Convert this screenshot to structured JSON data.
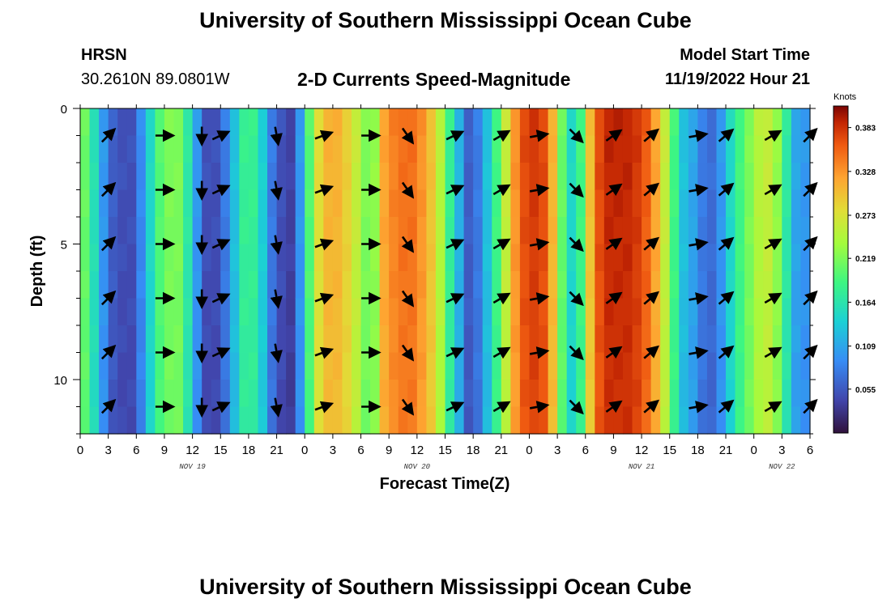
{
  "header": {
    "title": "University of Southern Mississippi Ocean Cube",
    "station": "HRSN",
    "coords": "30.2610N  89.0801W",
    "plot_title": "2-D Currents Speed-Magnitude",
    "model_label": "Model Start Time",
    "model_time": "11/19/2022 Hour 21",
    "footer_title": "University of Southern Mississippi Ocean Cube"
  },
  "chart_data": {
    "type": "heatmap",
    "title": "2-D Currents Speed-Magnitude",
    "xlabel": "Forecast Time(Z)",
    "ylabel": "Depth (ft)",
    "x_tick_labels": [
      "0",
      "3",
      "6",
      "9",
      "12",
      "15",
      "18",
      "21",
      "0",
      "3",
      "6",
      "9",
      "12",
      "15",
      "18",
      "21",
      "0",
      "3",
      "6",
      "9",
      "12",
      "15",
      "18",
      "21",
      "0",
      "3",
      "6"
    ],
    "x_tick_hours": [
      0,
      3,
      6,
      9,
      12,
      15,
      18,
      21,
      24,
      27,
      30,
      33,
      36,
      39,
      42,
      45,
      48,
      51,
      54,
      57,
      60,
      63,
      66,
      69,
      72,
      75,
      78
    ],
    "date_labels": [
      {
        "label": "NOV 19",
        "hour": 12
      },
      {
        "label": "NOV 20",
        "hour": 36
      },
      {
        "label": "NOV 21",
        "hour": 60
      },
      {
        "label": "NOV 22",
        "hour": 75
      }
    ],
    "xlim": [
      0,
      78
    ],
    "y_tick_labels": [
      "0",
      "5",
      "10"
    ],
    "y_tick_values": [
      0,
      5,
      10
    ],
    "ylim": [
      0,
      12
    ],
    "colorbar": {
      "label": "Knots",
      "ticks": [
        "0.383",
        "0.328",
        "0.273",
        "0.219",
        "0.164",
        "0.109",
        "0.055"
      ],
      "tick_values": [
        0.383,
        0.328,
        0.273,
        0.219,
        0.164,
        0.109,
        0.055
      ],
      "range": [
        0.0,
        0.41
      ]
    },
    "speed_by_hour": [
      0.21,
      0.16,
      0.1,
      0.06,
      0.05,
      0.05,
      0.09,
      0.15,
      0.2,
      0.22,
      0.22,
      0.17,
      0.1,
      0.05,
      0.05,
      0.08,
      0.13,
      0.18,
      0.18,
      0.14,
      0.08,
      0.05,
      0.04,
      0.1,
      0.2,
      0.28,
      0.31,
      0.31,
      0.29,
      0.26,
      0.22,
      0.23,
      0.32,
      0.34,
      0.35,
      0.35,
      0.33,
      0.3,
      0.25,
      0.18,
      0.12,
      0.06,
      0.08,
      0.13,
      0.19,
      0.26,
      0.33,
      0.37,
      0.38,
      0.37,
      0.31,
      0.21,
      0.15,
      0.19,
      0.3,
      0.37,
      0.39,
      0.39,
      0.39,
      0.38,
      0.36,
      0.32,
      0.26,
      0.19,
      0.13,
      0.11,
      0.08,
      0.07,
      0.1,
      0.15,
      0.19,
      0.22,
      0.25,
      0.26,
      0.23,
      0.17,
      0.11,
      0.1
    ],
    "vector_hours": [
      3,
      9,
      13,
      15,
      21,
      26,
      31,
      35,
      40,
      45,
      49,
      53,
      57,
      61,
      66,
      69,
      74,
      78
    ],
    "vector_depths": [
      1,
      3,
      5,
      7,
      9,
      11
    ],
    "vector_angles_deg": [
      -45,
      0,
      90,
      -25,
      80,
      -20,
      0,
      55,
      -25,
      -30,
      -10,
      45,
      -35,
      -40,
      -10,
      -40,
      -30,
      -45
    ]
  }
}
